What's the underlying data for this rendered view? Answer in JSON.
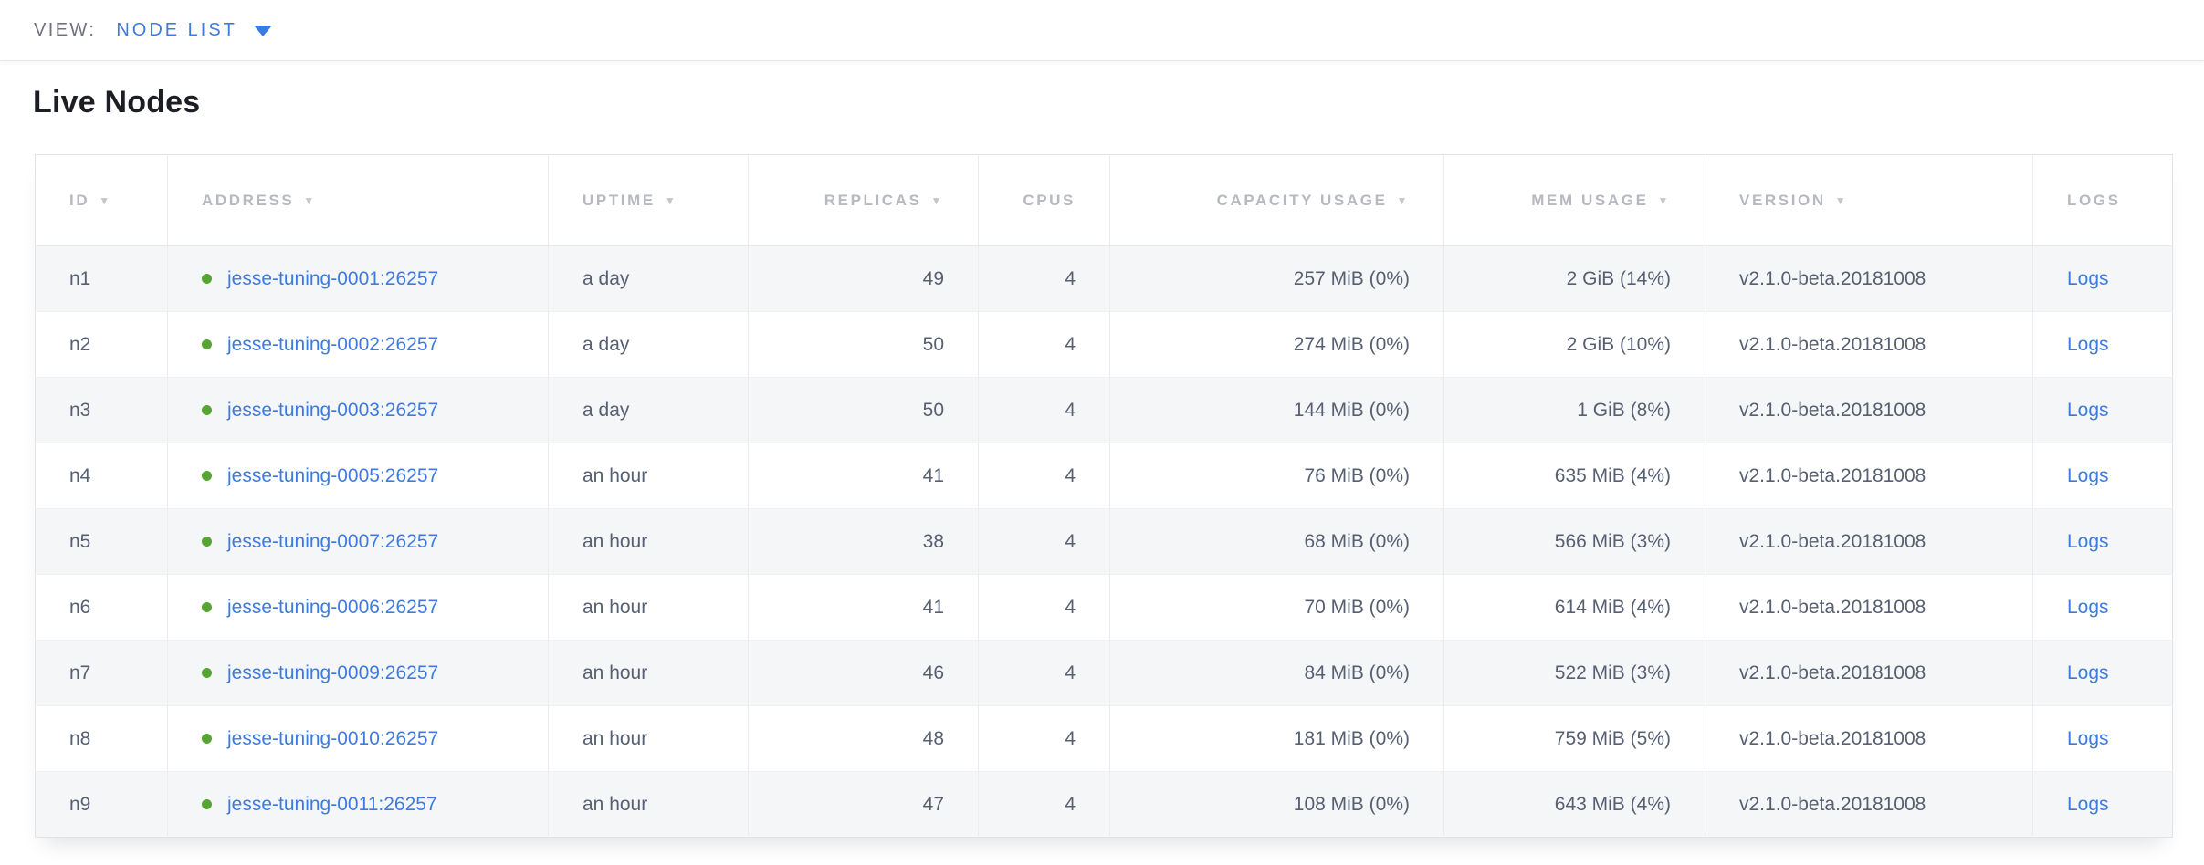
{
  "view_bar": {
    "label": "VIEW:",
    "selected": "NODE LIST"
  },
  "page": {
    "title": "Live Nodes"
  },
  "icons": {
    "sort_desc": "▼"
  },
  "colors": {
    "accent_blue": "#3d7be0",
    "live_green": "#55a532",
    "header_gray": "#b6b9bf",
    "body_text": "#575f72",
    "stripe": "#f5f6f7"
  },
  "table": {
    "columns": [
      {
        "key": "id",
        "label": "ID",
        "sortable": true,
        "align": "left"
      },
      {
        "key": "address",
        "label": "ADDRESS",
        "sortable": true,
        "align": "left"
      },
      {
        "key": "uptime",
        "label": "UPTIME",
        "sortable": true,
        "align": "left"
      },
      {
        "key": "replicas",
        "label": "REPLICAS",
        "sortable": true,
        "align": "right"
      },
      {
        "key": "cpus",
        "label": "CPUS",
        "sortable": false,
        "align": "right"
      },
      {
        "key": "capacity",
        "label": "CAPACITY USAGE",
        "sortable": true,
        "align": "right"
      },
      {
        "key": "mem",
        "label": "MEM USAGE",
        "sortable": true,
        "align": "right"
      },
      {
        "key": "version",
        "label": "VERSION",
        "sortable": true,
        "align": "left"
      },
      {
        "key": "logs",
        "label": "LOGS",
        "sortable": false,
        "align": "left"
      }
    ],
    "rows": [
      {
        "id": "n1",
        "status": "live",
        "address": "jesse-tuning-0001:26257",
        "uptime": "a day",
        "replicas": "49",
        "cpus": "4",
        "capacity": "257 MiB (0%)",
        "mem": "2 GiB (14%)",
        "version": "v2.1.0-beta.20181008",
        "logs": "Logs"
      },
      {
        "id": "n2",
        "status": "live",
        "address": "jesse-tuning-0002:26257",
        "uptime": "a day",
        "replicas": "50",
        "cpus": "4",
        "capacity": "274 MiB (0%)",
        "mem": "2 GiB (10%)",
        "version": "v2.1.0-beta.20181008",
        "logs": "Logs"
      },
      {
        "id": "n3",
        "status": "live",
        "address": "jesse-tuning-0003:26257",
        "uptime": "a day",
        "replicas": "50",
        "cpus": "4",
        "capacity": "144 MiB (0%)",
        "mem": "1 GiB (8%)",
        "version": "v2.1.0-beta.20181008",
        "logs": "Logs"
      },
      {
        "id": "n4",
        "status": "live",
        "address": "jesse-tuning-0005:26257",
        "uptime": "an hour",
        "replicas": "41",
        "cpus": "4",
        "capacity": "76 MiB (0%)",
        "mem": "635 MiB (4%)",
        "version": "v2.1.0-beta.20181008",
        "logs": "Logs"
      },
      {
        "id": "n5",
        "status": "live",
        "address": "jesse-tuning-0007:26257",
        "uptime": "an hour",
        "replicas": "38",
        "cpus": "4",
        "capacity": "68 MiB (0%)",
        "mem": "566 MiB (3%)",
        "version": "v2.1.0-beta.20181008",
        "logs": "Logs"
      },
      {
        "id": "n6",
        "status": "live",
        "address": "jesse-tuning-0006:26257",
        "uptime": "an hour",
        "replicas": "41",
        "cpus": "4",
        "capacity": "70 MiB (0%)",
        "mem": "614 MiB (4%)",
        "version": "v2.1.0-beta.20181008",
        "logs": "Logs"
      },
      {
        "id": "n7",
        "status": "live",
        "address": "jesse-tuning-0009:26257",
        "uptime": "an hour",
        "replicas": "46",
        "cpus": "4",
        "capacity": "84 MiB (0%)",
        "mem": "522 MiB (3%)",
        "version": "v2.1.0-beta.20181008",
        "logs": "Logs"
      },
      {
        "id": "n8",
        "status": "live",
        "address": "jesse-tuning-0010:26257",
        "uptime": "an hour",
        "replicas": "48",
        "cpus": "4",
        "capacity": "181 MiB (0%)",
        "mem": "759 MiB (5%)",
        "version": "v2.1.0-beta.20181008",
        "logs": "Logs"
      },
      {
        "id": "n9",
        "status": "live",
        "address": "jesse-tuning-0011:26257",
        "uptime": "an hour",
        "replicas": "47",
        "cpus": "4",
        "capacity": "108 MiB (0%)",
        "mem": "643 MiB (4%)",
        "version": "v2.1.0-beta.20181008",
        "logs": "Logs"
      }
    ]
  }
}
